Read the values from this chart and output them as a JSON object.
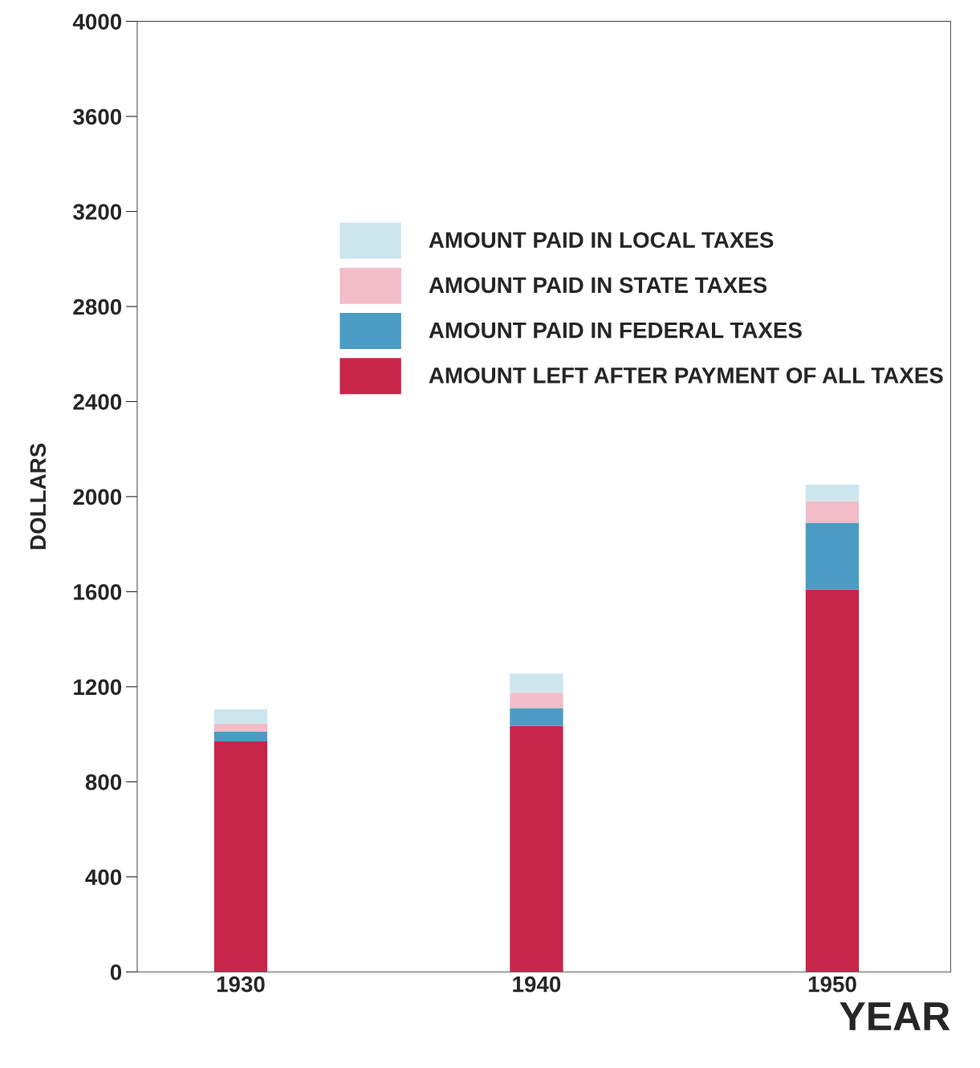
{
  "chart_data": {
    "type": "bar",
    "stacked": true,
    "ylabel": "DOLLARS",
    "xlabel": "YEAR",
    "categories": [
      "1930",
      "1940",
      "1950"
    ],
    "series": [
      {
        "name": "AMOUNT LEFT AFTER PAYMENT OF ALL TAXES",
        "color": "#c8254a",
        "values": [
          970,
          1035,
          1610
        ]
      },
      {
        "name": "AMOUNT PAID IN FEDERAL TAXES",
        "color": "#4a9cc4",
        "values": [
          40,
          75,
          280
        ]
      },
      {
        "name": "AMOUNT PAID IN STATE TAXES",
        "color": "#f2bcc8",
        "values": [
          35,
          65,
          90
        ]
      },
      {
        "name": "AMOUNT PAID IN LOCAL TAXES",
        "color": "#cde6ee",
        "values": [
          60,
          80,
          70
        ]
      }
    ],
    "ylim": [
      0,
      4000
    ],
    "yticks": [
      0,
      400,
      800,
      1200,
      1600,
      2000,
      2400,
      2800,
      3200,
      3600,
      4000
    ],
    "grid": false,
    "legend": "top"
  }
}
